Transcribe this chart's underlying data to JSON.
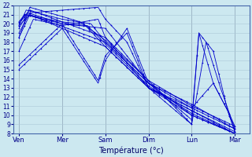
{
  "background_color": "#cce8f0",
  "grid_color": "#aac8d8",
  "line_color": "#0000cc",
  "xlabel": "Température (°c)",
  "ylim": [
    8,
    22
  ],
  "yticks": [
    8,
    9,
    10,
    11,
    12,
    13,
    14,
    15,
    16,
    17,
    18,
    19,
    20,
    21,
    22
  ],
  "day_labels": [
    "Ven",
    "Mer",
    "Sam",
    "Dim",
    "Lun",
    "Mar"
  ],
  "day_x": [
    0,
    24,
    48,
    72,
    96,
    120
  ],
  "xlim": [
    -3,
    128
  ],
  "lines": [
    {
      "x": [
        0,
        4,
        24,
        36,
        48,
        72,
        96,
        120
      ],
      "y": [
        20.0,
        21.0,
        20.2,
        20.0,
        17.5,
        13.0,
        10.5,
        8.2
      ]
    },
    {
      "x": [
        0,
        5,
        24,
        38,
        48,
        72,
        96,
        120
      ],
      "y": [
        19.5,
        21.2,
        20.0,
        19.8,
        17.8,
        13.2,
        10.2,
        8.0
      ]
    },
    {
      "x": [
        0,
        4,
        24,
        40,
        48,
        72,
        96,
        120
      ],
      "y": [
        19.8,
        21.5,
        20.5,
        20.0,
        18.0,
        13.5,
        10.8,
        8.5
      ]
    },
    {
      "x": [
        0,
        6,
        24,
        34,
        48,
        72,
        96,
        120
      ],
      "y": [
        18.5,
        21.8,
        20.8,
        20.2,
        18.2,
        13.8,
        11.0,
        8.8
      ]
    },
    {
      "x": [
        0,
        8,
        24,
        44,
        48,
        72,
        96,
        120
      ],
      "y": [
        17.0,
        20.5,
        19.8,
        20.5,
        18.5,
        13.0,
        10.0,
        8.0
      ]
    },
    {
      "x": [
        0,
        3,
        24,
        48,
        72,
        96,
        120
      ],
      "y": [
        20.2,
        21.0,
        20.0,
        19.5,
        13.5,
        10.0,
        8.0
      ]
    },
    {
      "x": [
        0,
        24,
        44,
        48,
        60,
        72,
        96,
        104,
        112,
        120
      ],
      "y": [
        15.5,
        20.0,
        13.8,
        16.5,
        19.0,
        13.0,
        9.0,
        18.0,
        13.0,
        8.5
      ]
    },
    {
      "x": [
        0,
        24,
        44,
        48,
        60,
        72,
        96,
        100,
        108,
        116,
        120
      ],
      "y": [
        15.0,
        19.5,
        13.5,
        16.0,
        19.5,
        13.5,
        9.5,
        19.0,
        13.5,
        10.5,
        8.8
      ]
    },
    {
      "x": [
        0,
        6,
        48,
        72,
        96,
        120
      ],
      "y": [
        19.8,
        21.0,
        18.0,
        13.5,
        11.2,
        8.5
      ]
    },
    {
      "x": [
        0,
        6,
        48,
        72,
        96,
        100,
        108,
        116,
        120
      ],
      "y": [
        20.2,
        21.5,
        18.5,
        13.8,
        9.0,
        19.0,
        17.0,
        10.5,
        8.2
      ]
    },
    {
      "x": [
        0,
        6,
        44,
        48,
        60,
        72,
        96,
        120
      ],
      "y": [
        19.0,
        21.2,
        21.8,
        20.5,
        18.0,
        13.0,
        10.5,
        8.0
      ]
    },
    {
      "x": [
        0,
        6,
        48,
        72,
        96,
        108,
        116,
        120
      ],
      "y": [
        18.5,
        21.0,
        17.5,
        13.0,
        10.8,
        13.5,
        10.5,
        8.2
      ]
    }
  ]
}
